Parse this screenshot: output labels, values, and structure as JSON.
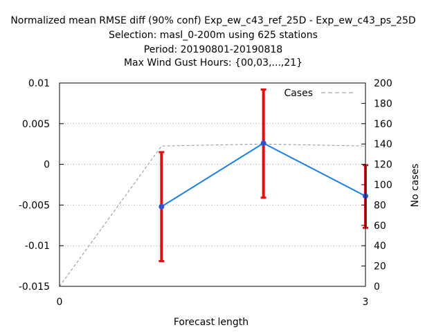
{
  "chart_data": {
    "type": "line",
    "title_lines": [
      "Normalized mean RMSE diff (90% conf) Exp_ew_c43_ref_25D - Exp_ew_c43_ps_25D",
      "Selection: masl_0-200m using   625 stations",
      "Period: 20190801-20190818",
      "Max Wind Gust   Hours: {00,03,...,21}"
    ],
    "xlabel": "Forecast length",
    "ylabel": "",
    "y2label": "No cases",
    "xlim": [
      0,
      3
    ],
    "ylim": [
      -0.015,
      0.01
    ],
    "y2lim": [
      0,
      200
    ],
    "x_ticks": [
      0,
      3
    ],
    "x_tick_labels": [
      "0",
      "3"
    ],
    "y_ticks": [
      0.01,
      0.005,
      0,
      -0.005,
      -0.01,
      -0.015
    ],
    "y_tick_labels": [
      "0.01",
      "0.005",
      "0",
      "-0.005",
      "-0.01",
      "-0.015"
    ],
    "y2_ticks": [
      200,
      180,
      160,
      140,
      120,
      100,
      80,
      60,
      40,
      20,
      0
    ],
    "y2_tick_labels": [
      "200",
      "180",
      "160",
      "140",
      "120",
      "100",
      "80",
      "60",
      "40",
      "20",
      "0"
    ],
    "grid": "horizontal",
    "legend_position": "top-right",
    "legend_label": "Cases",
    "series": {
      "x": [
        1,
        2,
        3
      ],
      "y": [
        -0.0052,
        0.0026,
        -0.0039
      ],
      "err_low": [
        -0.0119,
        -0.0041,
        -0.0078
      ],
      "err_high": [
        0.0015,
        0.0092,
        -0.0001
      ],
      "color": "#1a7fe0",
      "marker_color": "#3050d0",
      "errorbar_color": "#e01010"
    },
    "cases": {
      "x": [
        0,
        1,
        2,
        3
      ],
      "y": [
        0,
        138,
        140,
        138
      ],
      "color": "#909090"
    }
  }
}
